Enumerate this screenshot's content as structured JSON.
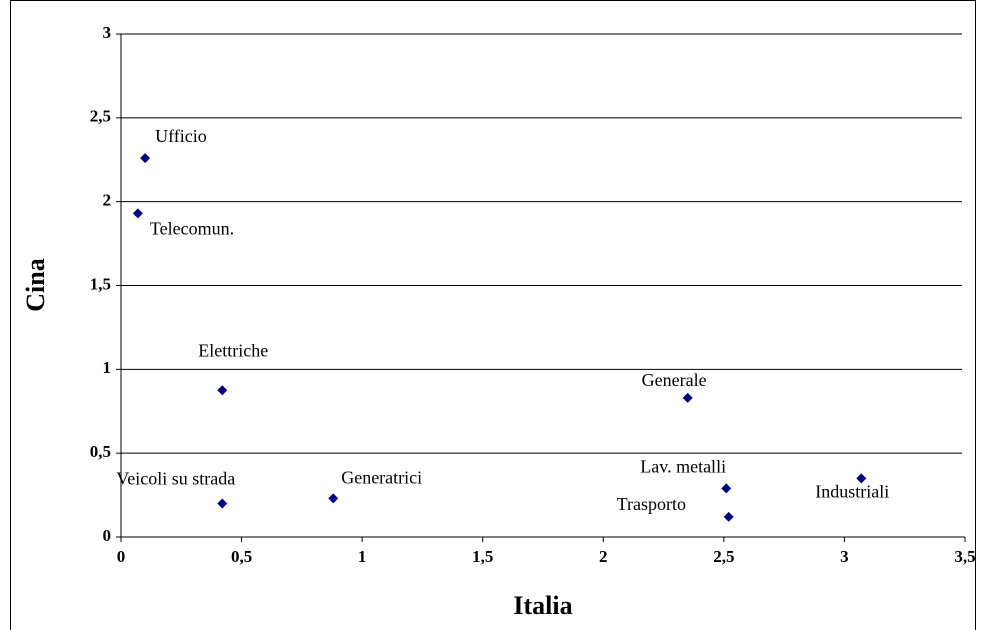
{
  "chart_data": {
    "type": "scatter",
    "x_label": "Italia",
    "y_label": "Cina",
    "x": [
      0.1,
      0.07,
      0.42,
      0.42,
      0.88,
      2.35,
      2.51,
      2.52,
      3.07
    ],
    "values": [
      2.26,
      1.93,
      0.875,
      0.2,
      0.23,
      0.83,
      0.29,
      0.12,
      0.35
    ],
    "point_labels": [
      "Ufficio",
      "Telecomun.",
      "Elettriche",
      "Veicoli su strada",
      "Generatrici",
      "Generale",
      "Lav. metalli",
      "Trasporto",
      "Industriali"
    ],
    "color": "#000080",
    "xlim": [
      0,
      3.5
    ],
    "xticks": [
      0,
      {
        "value": 0.5,
        "label": "0,5"
      },
      1,
      {
        "value": 1.5,
        "label": "1,5"
      },
      2,
      {
        "value": 2.5,
        "label": "2,5"
      },
      3,
      {
        "value": 3.5,
        "label": "3,5"
      }
    ],
    "ylim": [
      0,
      3
    ],
    "yticks": [
      0,
      {
        "value": 0.5,
        "label": "0,5"
      },
      1,
      {
        "value": 1.5,
        "label": "1,5"
      },
      2,
      {
        "value": 2.5,
        "label": "2,5"
      },
      3
    ],
    "grid": true
  }
}
